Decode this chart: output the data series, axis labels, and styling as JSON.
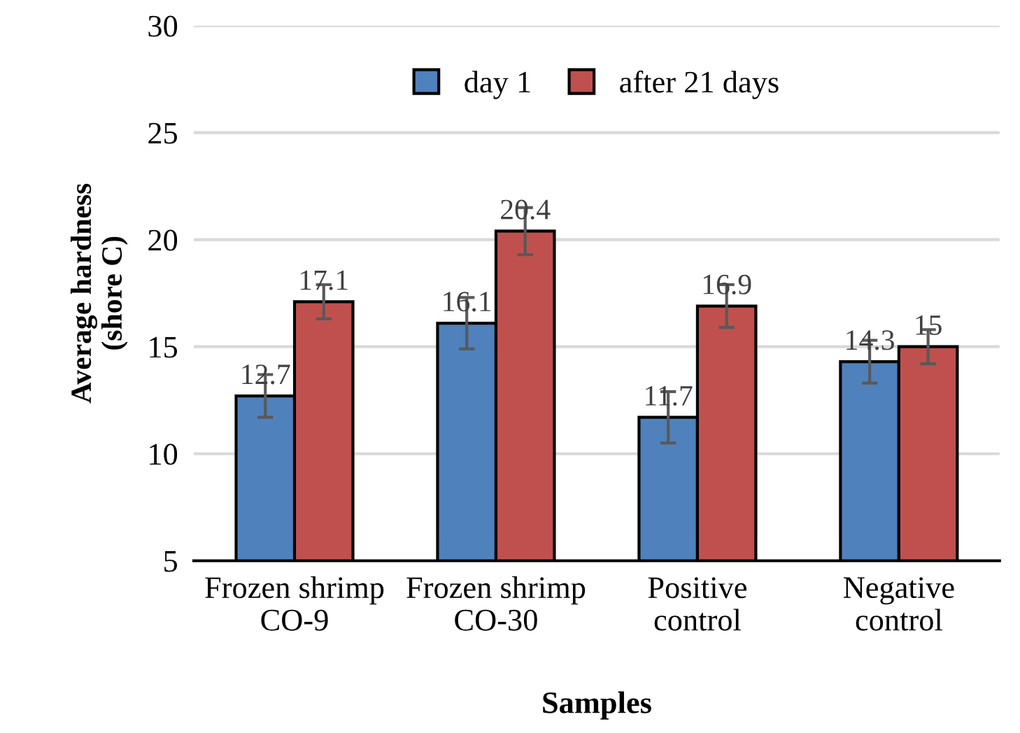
{
  "chart_data": {
    "type": "bar",
    "xlabel": "Samples",
    "ylabel": "Average hardness\n(shore C)",
    "categories": [
      "Frozen shrimp\nCO-9",
      "Frozen shrimp\nCO-30",
      "Positive\ncontrol",
      "Negative\ncontrol"
    ],
    "series": [
      {
        "name": "day 1",
        "color": "#4f81bd",
        "values": [
          12.7,
          16.1,
          11.7,
          14.3
        ],
        "errors": [
          1.0,
          1.2,
          1.2,
          1.0
        ]
      },
      {
        "name": "after 21 days",
        "color": "#c0504d",
        "values": [
          17.1,
          20.4,
          16.9,
          15
        ],
        "errors": [
          0.8,
          1.1,
          1.0,
          0.8
        ]
      }
    ],
    "ylim": [
      5,
      30
    ],
    "yticks": [
      5,
      10,
      15,
      20,
      25,
      30
    ],
    "grid": "y",
    "legend": "top",
    "data_labels": true
  }
}
